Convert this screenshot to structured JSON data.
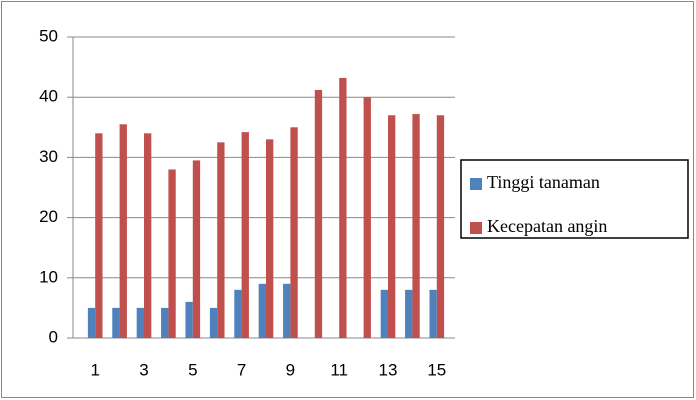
{
  "chart_data": {
    "type": "bar",
    "categories": [
      "1",
      null,
      "3",
      null,
      "5",
      null,
      "7",
      null,
      "9",
      null,
      "11",
      null,
      "13",
      null,
      "15"
    ],
    "series": [
      {
        "name": "Tinggi tanaman",
        "color": "#4f81bd",
        "values": [
          5,
          5,
          5,
          5,
          6,
          5,
          8,
          9,
          9,
          null,
          null,
          null,
          8,
          8,
          8
        ]
      },
      {
        "name": "Kecepatan angin",
        "color": "#c0504d",
        "values": [
          34,
          35.5,
          34,
          28,
          29.5,
          32.5,
          34.2,
          33,
          35,
          41.2,
          43.2,
          40,
          37,
          37.2,
          37
        ]
      }
    ],
    "ylim": [
      0,
      50
    ],
    "yticks": [
      0,
      10,
      20,
      30,
      40,
      50
    ],
    "grid": true,
    "legend": "right"
  }
}
